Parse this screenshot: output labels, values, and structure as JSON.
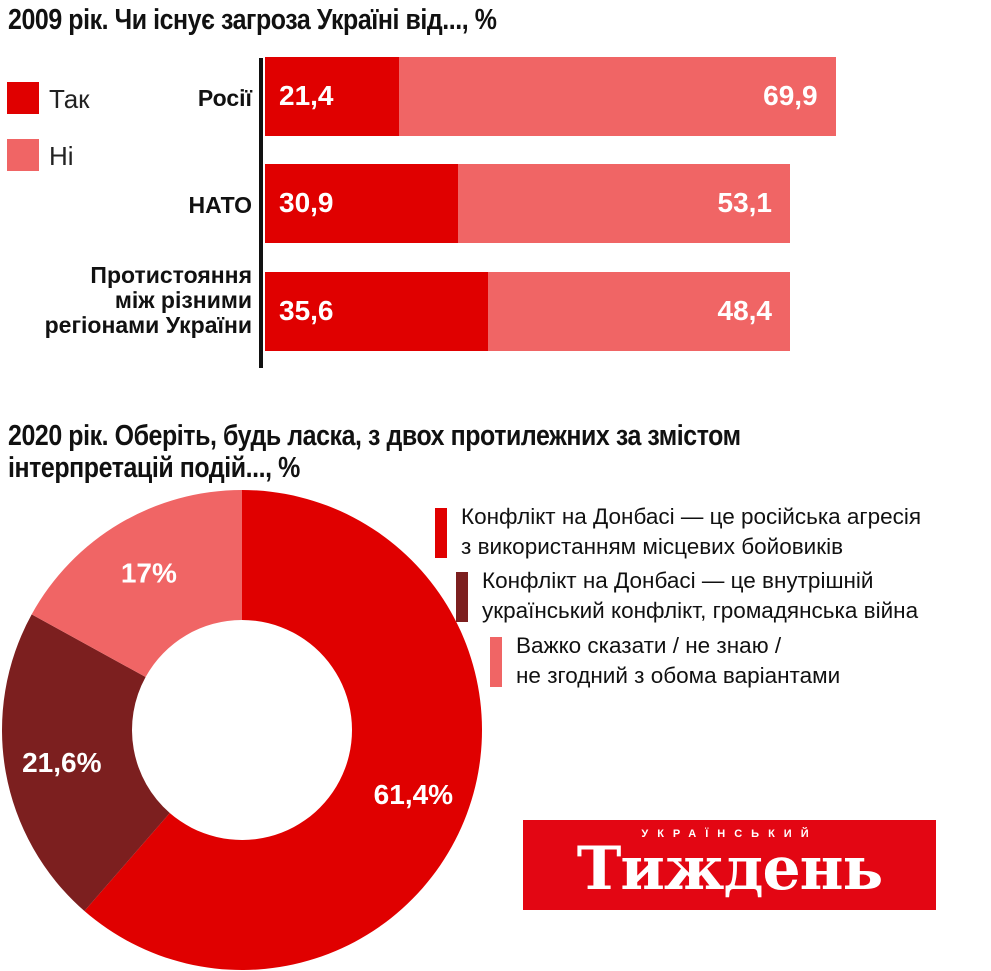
{
  "colors": {
    "primary_red": "#e00000",
    "light_red": "#f06565",
    "dark_red": "#7c1f1f",
    "text": "#111111",
    "logo_bg": "#e30613"
  },
  "top_chart": {
    "title": "2009 рік. Чи існує загроза Україні від..., %",
    "legend": [
      {
        "label": "Так",
        "color": "#e00000"
      },
      {
        "label": "Ні",
        "color": "#f06565"
      }
    ],
    "categories": [
      {
        "lines": [
          "Росії"
        ]
      },
      {
        "lines": [
          "НАТО"
        ]
      },
      {
        "lines": [
          "Протистояння",
          "між різними",
          "регіонами України"
        ]
      }
    ]
  },
  "chart_data": [
    {
      "type": "bar",
      "orientation": "horizontal-stacked",
      "title": "2009 рік. Чи існує загроза Україні від..., %",
      "categories": [
        "Росії",
        "НАТО",
        "Протистояння між різними регіонами України"
      ],
      "series": [
        {
          "name": "Так",
          "values": [
            21.4,
            30.9,
            35.6
          ],
          "labels": [
            "21,4",
            "30,9",
            "35,6"
          ],
          "color": "#e00000"
        },
        {
          "name": "Ні",
          "values": [
            69.9,
            53.1,
            48.4
          ],
          "labels": [
            "69,9",
            "53,1",
            "48,4"
          ],
          "color": "#f06565"
        }
      ],
      "legend_position": "left"
    },
    {
      "type": "pie",
      "variant": "donut",
      "title": "2020 рік. Оберіть, будь ласка, з двох протилежних за змістом інтерпретацій подій..., %",
      "slices": [
        {
          "name": "Конфлікт на Донбасі — це російська агресія з використанням місцевих бойовиків",
          "value": 61.4,
          "label": "61,4%",
          "color": "#e00000"
        },
        {
          "name": "Конфлікт на Донбасі — це внутрішній український конфлікт, громадянська війна",
          "value": 21.6,
          "label": "21,6%",
          "color": "#7c1f1f"
        },
        {
          "name": "Важко сказати / не знаю / не згодний з обома варіантами",
          "value": 17,
          "label": "17%",
          "color": "#f06565"
        }
      ],
      "legend_position": "right"
    }
  ],
  "bottom_chart": {
    "title_lines": [
      "2020 рік. Оберіть, будь ласка, з двох протилежних за змістом",
      "інтерпретацій подій..., %"
    ],
    "legend": [
      {
        "lines": [
          "Конфлікт на Донбасі — це російська агресія",
          "з використанням місцевих бойовиків"
        ],
        "color": "#e00000"
      },
      {
        "lines": [
          "Конфлікт на Донбасі — це внутрішній",
          "український конфлікт, громадянська війна"
        ],
        "color": "#7c1f1f"
      },
      {
        "lines": [
          "Важко сказати / не знаю /",
          "не згодний з обома варіантами"
        ],
        "color": "#f06565"
      }
    ]
  },
  "logo": {
    "subtitle": "УКРАЇНСЬКИЙ",
    "name": "Тиждень"
  }
}
